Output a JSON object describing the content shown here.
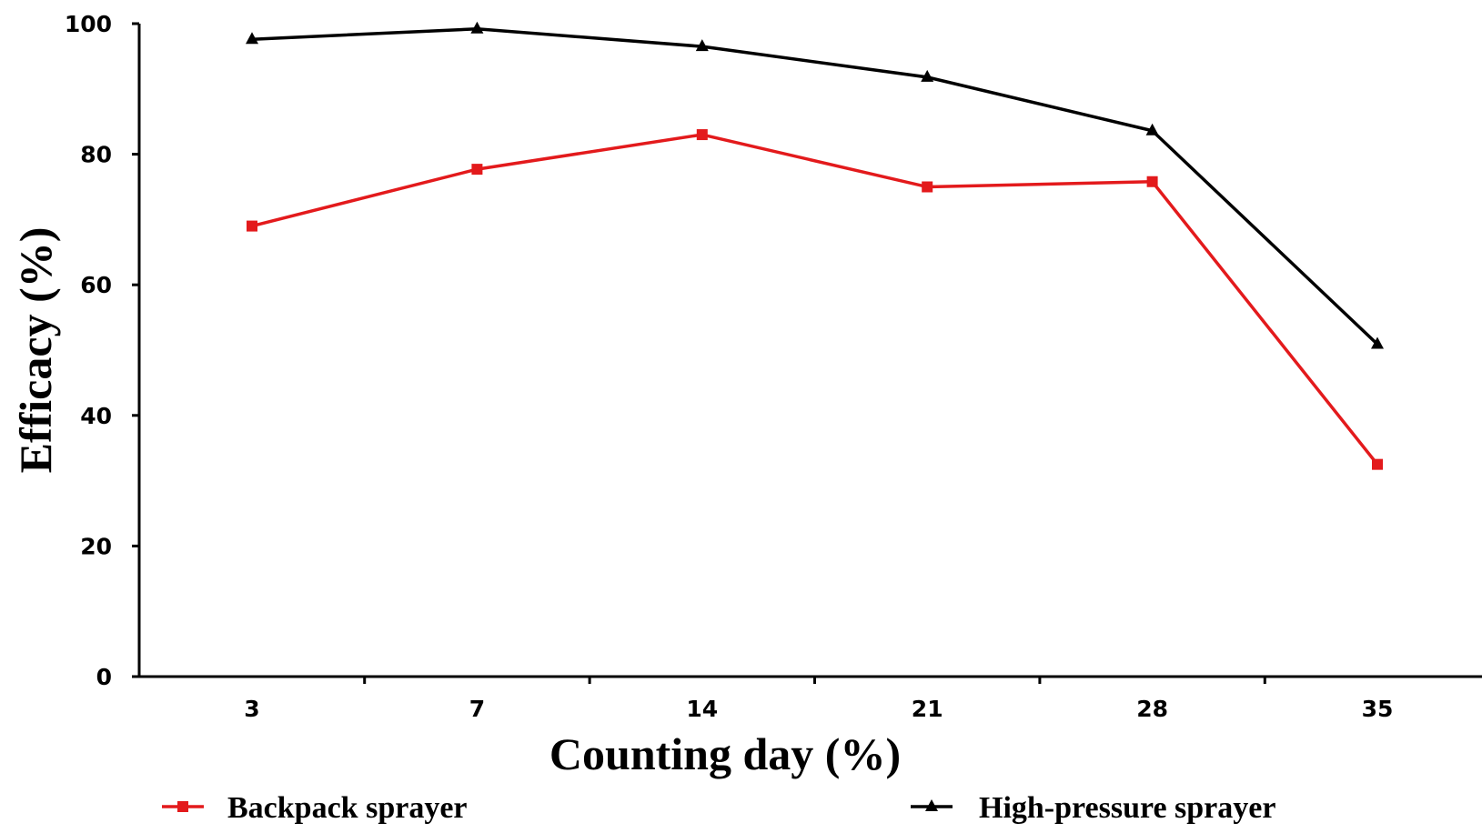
{
  "chart_data": {
    "type": "line",
    "title": "",
    "xlabel": "Counting day (%)",
    "ylabel": "Efficacy (%)",
    "categories": [
      "3",
      "7",
      "14",
      "21",
      "28",
      "35"
    ],
    "ylim": [
      0,
      100
    ],
    "yticks": [
      0,
      20,
      40,
      60,
      80,
      100
    ],
    "grid": false,
    "legend_position": "bottom",
    "series": [
      {
        "name": "Backpack sprayer",
        "color": "#e31a1c",
        "marker": "square",
        "values": [
          69,
          77.7,
          83,
          75,
          75.8,
          32.5
        ]
      },
      {
        "name": "High-pressure sprayer",
        "color": "#000000",
        "marker": "triangle",
        "values": [
          97.6,
          99.2,
          96.5,
          91.8,
          83.6,
          50.9
        ]
      }
    ]
  }
}
